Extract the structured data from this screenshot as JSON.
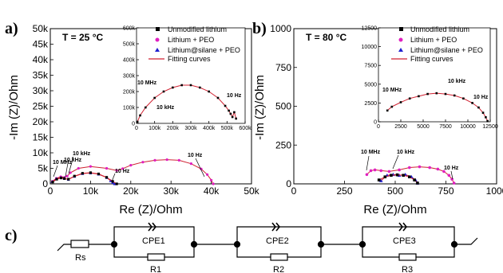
{
  "panels": [
    {
      "label": "a)",
      "temperature": "T = 25 °C",
      "xlabel": "Re (Z)/Ohm",
      "ylabel": "-Im (Z)/Ohm",
      "xticks": [
        "0",
        "10k",
        "20k",
        "30k",
        "40k",
        "50k"
      ],
      "yticks": [
        "0",
        "5k",
        "10k",
        "15k",
        "20k",
        "25k",
        "30k",
        "35k",
        "40k",
        "45k",
        "50k"
      ],
      "annotations": [
        "10 MHz",
        "10 kHz",
        "10 kHz",
        "10 Hz",
        "10 Hz"
      ],
      "inset": {
        "xticks": [
          "0",
          "100k",
          "200k",
          "300k",
          "400k",
          "500k",
          "600k"
        ],
        "yticks": [
          "0",
          "100k",
          "200k",
          "300k",
          "400k",
          "500k",
          "600k"
        ],
        "annotations": [
          "10 MHz",
          "10 kHz",
          "10 Hz"
        ]
      }
    },
    {
      "label": "b)",
      "temperature": "T = 80 °C",
      "xlabel": "Re (Z)/Ohm",
      "ylabel": "-Im (Z)/Ohm",
      "xticks": [
        "0",
        "250",
        "500",
        "750",
        "1000"
      ],
      "yticks": [
        "0",
        "250",
        "500",
        "750",
        "1000"
      ],
      "annotations": [
        "10 MHz",
        "10 kHz",
        "10 Hz"
      ],
      "inset": {
        "xticks": [
          "0",
          "2500",
          "5000",
          "7500",
          "10000",
          "12500"
        ],
        "yticks": [
          "0",
          "2500",
          "5000",
          "7500",
          "10000",
          "12500"
        ],
        "annotations": [
          "10 MHz",
          "10 kHz",
          "10 Hz"
        ]
      }
    }
  ],
  "legend": [
    "Unmodified lithium",
    "Lithium + PEO",
    "Lithium@silane + PEO",
    "Fitting curves"
  ],
  "colors": {
    "unmodified": "#000000",
    "peo": "#e020c0",
    "silane": "#2020d0",
    "fit": "#d02030"
  },
  "circuit": {
    "label": "c)",
    "elements": [
      "Rs",
      "CPE1",
      "R1",
      "CPE2",
      "R2",
      "CPE3",
      "R3"
    ]
  },
  "chart_data": [
    {
      "type": "scatter",
      "name": "a-main",
      "xlim": [
        0,
        50000
      ],
      "ylim": [
        0,
        50000
      ],
      "series": [
        {
          "name": "Lithium + PEO",
          "x": [
            500,
            1500,
            2600,
            3500,
            4200,
            5000,
            7000,
            10000,
            14000,
            16500,
            18000,
            20000,
            23000,
            26000,
            29000,
            32000,
            35000,
            37500,
            39000,
            40000,
            40500
          ],
          "y": [
            800,
            1800,
            2300,
            2100,
            2500,
            3600,
            5000,
            5600,
            5000,
            4300,
            4900,
            6000,
            7000,
            7600,
            7800,
            7600,
            6500,
            4800,
            3000,
            1200,
            0
          ]
        },
        {
          "name": "Lithium@silane + PEO",
          "x": [
            500,
            1500,
            2600,
            3500,
            4500,
            6000,
            8000,
            10000,
            12000,
            14000,
            15000,
            15500,
            16000
          ],
          "y": [
            700,
            1600,
            2000,
            1800,
            1400,
            2400,
            3300,
            3500,
            3100,
            2000,
            1000,
            400,
            0
          ]
        },
        {
          "name": "Unmodified lithium",
          "x": [
            600,
            1600,
            2700,
            3500,
            4500,
            6000,
            8000,
            10000,
            12000,
            14000,
            15500,
            16500
          ],
          "y": [
            600,
            1500,
            1900,
            1700,
            1500,
            2500,
            3400,
            3600,
            3200,
            2100,
            800,
            0
          ]
        }
      ]
    },
    {
      "type": "scatter",
      "name": "a-inset",
      "xlim": [
        0,
        600000
      ],
      "ylim": [
        0,
        600000
      ],
      "series": [
        {
          "name": "Unmodified lithium",
          "x": [
            5000,
            20000,
            50000,
            100000,
            150000,
            200000,
            250000,
            300000,
            350000,
            400000,
            450000,
            490000,
            510000,
            520000,
            530000,
            540000,
            550000
          ],
          "y": [
            10000,
            50000,
            100000,
            160000,
            200000,
            225000,
            240000,
            240000,
            225000,
            200000,
            160000,
            110000,
            80000,
            60000,
            40000,
            70000,
            30000
          ]
        }
      ]
    },
    {
      "type": "scatter",
      "name": "b-main",
      "xlim": [
        0,
        1000
      ],
      "ylim": [
        0,
        1000
      ],
      "series": [
        {
          "name": "Lithium + PEO",
          "x": [
            360,
            380,
            400,
            430,
            470,
            520,
            570,
            620,
            670,
            710,
            740,
            765,
            780,
            790
          ],
          "y": [
            60,
            85,
            90,
            85,
            80,
            90,
            105,
            110,
            105,
            95,
            80,
            55,
            30,
            5
          ]
        },
        {
          "name": "Lithium@silane + PEO",
          "x": [
            430,
            460,
            490,
            520,
            550,
            580,
            600,
            610
          ],
          "y": [
            20,
            55,
            60,
            55,
            60,
            45,
            25,
            5
          ]
        },
        {
          "name": "Unmodified lithium",
          "x": [
            420,
            450,
            480,
            510,
            540,
            570,
            595,
            610
          ],
          "y": [
            25,
            45,
            55,
            58,
            55,
            45,
            25,
            5
          ]
        }
      ]
    },
    {
      "type": "scatter",
      "name": "b-inset",
      "xlim": [
        0,
        12500
      ],
      "ylim": [
        0,
        12500
      ],
      "series": [
        {
          "name": "Unmodified lithium",
          "x": [
            1000,
            1500,
            2500,
            3500,
            4500,
            5500,
            6500,
            7500,
            8500,
            9500,
            10500,
            11200,
            11700,
            12000,
            12200
          ],
          "y": [
            1500,
            2000,
            2600,
            3100,
            3400,
            3700,
            3800,
            3700,
            3500,
            3100,
            2500,
            1900,
            1200,
            600,
            100
          ]
        }
      ]
    }
  ]
}
